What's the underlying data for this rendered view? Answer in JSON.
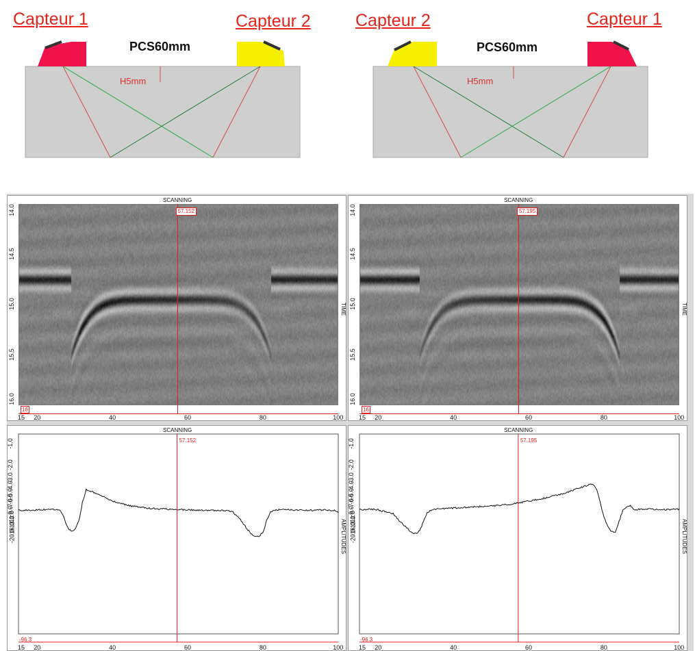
{
  "diagrams": [
    {
      "left_sensor_label": "Capteur 1",
      "right_sensor_label": "Capteur 2",
      "spacing_label": "PCS60mm",
      "depth_label": "H5mm",
      "left_sensor_color": "#f0124a",
      "right_sensor_color": "#f7ef00"
    },
    {
      "left_sensor_label": "Capteur 2",
      "right_sensor_label": "Capteur 1",
      "spacing_label": "PCS60mm",
      "depth_label": "H5mm",
      "left_sensor_color": "#f7ef00",
      "right_sensor_color": "#f0124a"
    }
  ],
  "colors": {
    "part": "#cfcfcf",
    "red_beam": "#d84a4a",
    "green_beam": "#2da84a",
    "cursor": "#e02020"
  },
  "chart_data": [
    {
      "type": "heatmap",
      "title": "SCANNING",
      "ylabel": "TIME",
      "xlim": [
        15,
        100
      ],
      "ylim": [
        14.0,
        16.0
      ],
      "x_ticks": [
        "15",
        "20",
        "40",
        "60",
        "80",
        "100"
      ],
      "y_ticks": [
        "14.0",
        "14.5",
        "15.0",
        "15.5",
        "16.0"
      ],
      "cursor_value": "57.152",
      "corner_label": "16",
      "echo": {
        "plateau_left_end": 29,
        "arc_start": 32,
        "arc_end": 79,
        "plateau_right_start": 82,
        "plateau_time": 14.75,
        "arc_peak_time": 14.95,
        "dominant_side": "left"
      }
    },
    {
      "type": "heatmap",
      "title": "SCANNING",
      "ylabel": "TIME",
      "xlim": [
        15,
        100
      ],
      "ylim": [
        14.0,
        16.0
      ],
      "x_ticks": [
        "15",
        "20",
        "40",
        "60",
        "80",
        "100"
      ],
      "y_ticks": [
        "14.0",
        "14.5",
        "15.0",
        "15.5",
        "16.0"
      ],
      "cursor_value": "57.195",
      "corner_label": "16",
      "echo": {
        "plateau_left_end": 31,
        "arc_start": 34,
        "arc_end": 81,
        "plateau_right_start": 84,
        "plateau_time": 14.75,
        "arc_peak_time": 14.95,
        "dominant_side": "right"
      }
    },
    {
      "type": "line",
      "title": "SCANNING",
      "ylabel": "AMPLITUDES",
      "xlim": [
        15,
        100
      ],
      "ylim": [
        -96.3,
        0
      ],
      "x_ticks": [
        "15",
        "20",
        "40",
        "60",
        "80",
        "100"
      ],
      "y_ticks": [
        "-1.0",
        "-2.0",
        "-3.0",
        "-4.0",
        "-5.0",
        "-6.0",
        "-7.0",
        "-9.0",
        "-11.0",
        "-13.0",
        "-16.0",
        "-20.0"
      ],
      "cursor_value": "57.152",
      "min_label": "-96.3",
      "series": [
        {
          "x": [
            15,
            20,
            24,
            26,
            27,
            28,
            29,
            30,
            31,
            32,
            33,
            34,
            36,
            40,
            45,
            50,
            55,
            60,
            65,
            70,
            72,
            74,
            76,
            77,
            78,
            79,
            80,
            81,
            82,
            83,
            85,
            88,
            92,
            96,
            99,
            100
          ],
          "y": [
            -8.5,
            -8.4,
            -8.2,
            -8.5,
            -10.5,
            -14.5,
            -16.8,
            -16.0,
            -12.0,
            -6.5,
            -4.3,
            -4.5,
            -5.0,
            -6.3,
            -7.4,
            -8.0,
            -8.2,
            -8.4,
            -8.5,
            -8.6,
            -9.0,
            -11.5,
            -16.0,
            -18.5,
            -19.8,
            -19.5,
            -17.0,
            -11.5,
            -9.0,
            -8.4,
            -8.3,
            -8.4,
            -8.5,
            -8.4,
            -8.5,
            -9.2
          ]
        }
      ]
    },
    {
      "type": "line",
      "title": "SCANNING",
      "ylabel": "AMPLITUDES",
      "xlim": [
        15,
        100
      ],
      "ylim": [
        -96.3,
        0
      ],
      "x_ticks": [
        "15",
        "20",
        "40",
        "60",
        "80",
        "100"
      ],
      "y_ticks": [
        "-1.0",
        "-2.0",
        "-3.0",
        "-4.0",
        "-5.0",
        "-6.0",
        "-7.0",
        "-9.0",
        "-11.0",
        "-13.0",
        "-16.0",
        "-20.0"
      ],
      "cursor_value": "57.195",
      "min_label": "-96.3",
      "series": [
        {
          "x": [
            15,
            18,
            20,
            24,
            27,
            29,
            30,
            31,
            32,
            33,
            34,
            35,
            36,
            38,
            42,
            46,
            50,
            55,
            60,
            65,
            70,
            74,
            77,
            78,
            79,
            80,
            81,
            82,
            83,
            84,
            85,
            86,
            87,
            88,
            92,
            96,
            100
          ],
          "y": [
            -8.3,
            -8.2,
            -8.4,
            -9.5,
            -14.0,
            -17.8,
            -18.2,
            -16.5,
            -12.0,
            -9.2,
            -8.5,
            -8.3,
            -8.1,
            -8.0,
            -7.8,
            -7.6,
            -7.4,
            -7.0,
            -6.3,
            -5.6,
            -4.8,
            -4.0,
            -3.6,
            -4.2,
            -6.5,
            -10.5,
            -14.5,
            -17.2,
            -17.0,
            -12.0,
            -8.5,
            -7.6,
            -7.4,
            -8.3,
            -8.2,
            -8.3,
            -8.2
          ]
        }
      ]
    }
  ]
}
